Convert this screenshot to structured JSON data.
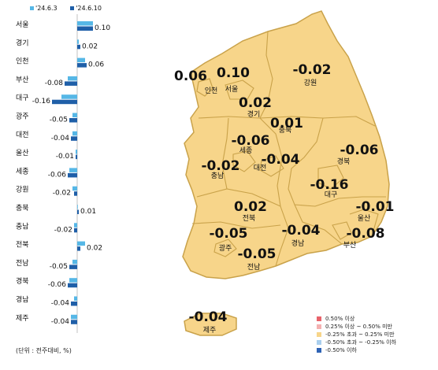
{
  "legend": {
    "series1": "'24.6.3",
    "series2": "'24.6.10"
  },
  "unit_note": "(단위 : 전주대비, %)",
  "colors": {
    "series1": "#56b7e6",
    "series2": "#1f5fa8",
    "land": "#f7d58a",
    "border": "#c9a24a",
    "water": "#e6e6e6"
  },
  "chart_data": {
    "type": "bar",
    "orientation": "horizontal",
    "categories": [
      "서울",
      "경기",
      "인천",
      "부산",
      "대구",
      "광주",
      "대전",
      "울산",
      "세종",
      "강원",
      "충북",
      "충남",
      "전북",
      "전남",
      "경북",
      "경남",
      "제주"
    ],
    "series": [
      {
        "name": "'24.6.3",
        "values": [
          0.1,
          0.01,
          0.05,
          -0.06,
          -0.1,
          -0.03,
          -0.03,
          -0.01,
          -0.05,
          -0.03,
          0.0,
          -0.02,
          0.05,
          -0.03,
          -0.05,
          -0.02,
          -0.04
        ]
      },
      {
        "name": "'24.6.10",
        "values": [
          0.1,
          0.02,
          0.06,
          -0.08,
          -0.16,
          -0.05,
          -0.04,
          -0.01,
          -0.06,
          -0.02,
          0.01,
          -0.02,
          0.02,
          -0.05,
          -0.06,
          -0.04,
          -0.04
        ]
      }
    ],
    "labels": [
      "0.10",
      "0.02",
      "0.06",
      "-0.08",
      "-0.16",
      "-0.05",
      "-0.04",
      "-0.01",
      "-0.06",
      "-0.02",
      "0.01",
      "-0.02",
      "0.02",
      "-0.05",
      "-0.06",
      "-0.04",
      "-0.04"
    ]
  },
  "map_regions": [
    {
      "id": "incheon",
      "name": "인천",
      "value": "0.06"
    },
    {
      "id": "seoul",
      "name": "서울",
      "value": "0.10"
    },
    {
      "id": "gyeonggi",
      "name": "경기",
      "value": "0.02"
    },
    {
      "id": "gangwon",
      "name": "강원",
      "value": "-0.02"
    },
    {
      "id": "chungbuk",
      "name": "충북",
      "value": "0.01"
    },
    {
      "id": "sejong",
      "name": "세종",
      "value": "-0.06"
    },
    {
      "id": "daejeon",
      "name": "대전",
      "value": "-0.04"
    },
    {
      "id": "chungnam",
      "name": "충남",
      "value": "-0.02"
    },
    {
      "id": "gyeongbuk",
      "name": "경북",
      "value": "-0.06"
    },
    {
      "id": "daegu",
      "name": "대구",
      "value": "-0.16"
    },
    {
      "id": "ulsan",
      "name": "울산",
      "value": "-0.01"
    },
    {
      "id": "jeonbuk",
      "name": "전북",
      "value": "0.02"
    },
    {
      "id": "gwangju",
      "name": "광주",
      "value": "-0.05"
    },
    {
      "id": "jeonnam",
      "name": "전남",
      "value": "-0.05"
    },
    {
      "id": "gyeongnam",
      "name": "경남",
      "value": "-0.04"
    },
    {
      "id": "busan",
      "name": "부산",
      "value": "-0.08"
    },
    {
      "id": "jeju",
      "name": "제주",
      "value": "-0.04"
    }
  ],
  "map_legend": [
    {
      "label": "0.50% 이상",
      "color": "#e8636b"
    },
    {
      "label": "0.25% 이상 ~ 0.50% 미만",
      "color": "#f4b1b1"
    },
    {
      "label": "-0.25% 초과 ~ 0.25% 미만",
      "color": "#f7d58a"
    },
    {
      "label": "-0.50% 초과 ~ -0.25% 이하",
      "color": "#a9cfee"
    },
    {
      "label": "-0.50% 이하",
      "color": "#2f63b5"
    }
  ]
}
